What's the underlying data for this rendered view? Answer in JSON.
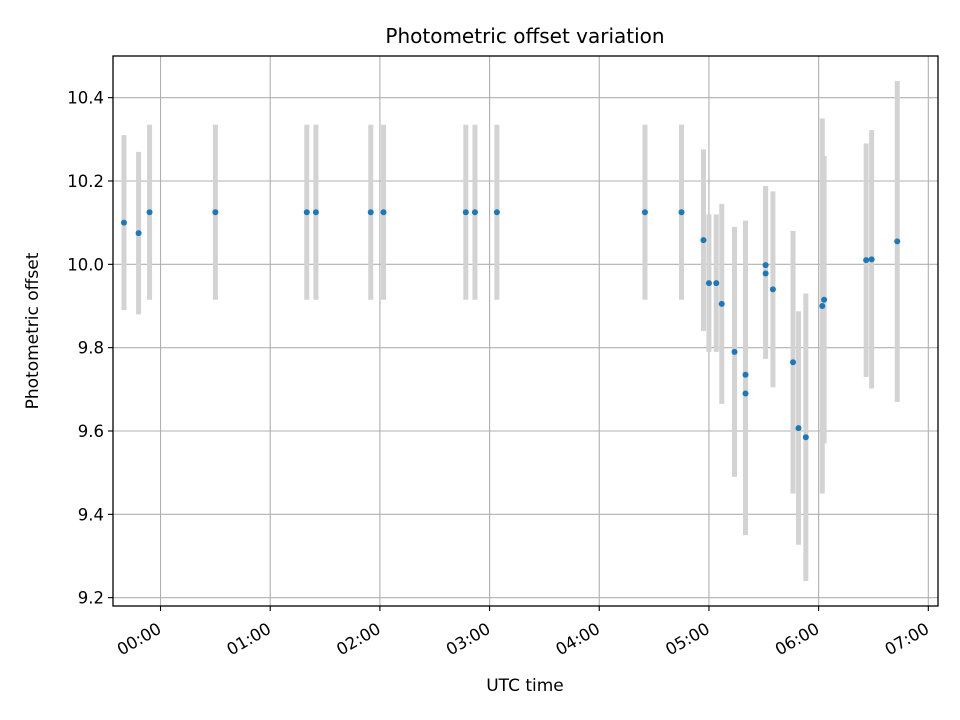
{
  "chart_data": {
    "type": "scatter",
    "title": "Photometric offset variation",
    "xlabel": "UTC time",
    "ylabel": "Photometric offset",
    "xlim": [
      "-00:20",
      "07:05"
    ],
    "ylim": [
      9.18,
      10.5
    ],
    "x_ticks": [
      "00:00",
      "01:00",
      "02:00",
      "03:00",
      "04:00",
      "05:00",
      "06:00",
      "07:00"
    ],
    "y_ticks": [
      "9.2",
      "9.4",
      "9.6",
      "9.8",
      "10.0",
      "10.2",
      "10.4"
    ],
    "grid": true,
    "legend": "none",
    "point_color": "#1f77b4",
    "errorbar_color": "#d3d3d3",
    "points": [
      {
        "time": "-00:20",
        "value": 10.1,
        "err": 0.21
      },
      {
        "time": "-00:12",
        "value": 10.075,
        "err": 0.195
      },
      {
        "time": "-00:06",
        "value": 10.125,
        "err": 0.21
      },
      {
        "time": "00:30",
        "value": 10.125,
        "err": 0.21
      },
      {
        "time": "01:20",
        "value": 10.125,
        "err": 0.21
      },
      {
        "time": "01:25",
        "value": 10.125,
        "err": 0.21
      },
      {
        "time": "01:55",
        "value": 10.125,
        "err": 0.21
      },
      {
        "time": "02:02",
        "value": 10.125,
        "err": 0.21
      },
      {
        "time": "02:47",
        "value": 10.125,
        "err": 0.21
      },
      {
        "time": "02:52",
        "value": 10.125,
        "err": 0.21
      },
      {
        "time": "03:04",
        "value": 10.125,
        "err": 0.21
      },
      {
        "time": "04:25",
        "value": 10.125,
        "err": 0.21
      },
      {
        "time": "04:45",
        "value": 10.125,
        "err": 0.21
      },
      {
        "time": "04:57",
        "value": 10.058,
        "err": 0.218
      },
      {
        "time": "05:00",
        "value": 9.955,
        "err": 0.165
      },
      {
        "time": "05:04",
        "value": 9.955,
        "err": 0.165
      },
      {
        "time": "05:07",
        "value": 9.905,
        "err": 0.24
      },
      {
        "time": "05:14",
        "value": 9.79,
        "err": 0.3
      },
      {
        "time": "05:20",
        "value": 9.735,
        "err": 0.37
      },
      {
        "time": "05:20",
        "value": 9.69,
        "err": 0.34
      },
      {
        "time": "05:31",
        "value": 9.998,
        "err": 0.19
      },
      {
        "time": "05:31",
        "value": 9.978,
        "err": 0.205
      },
      {
        "time": "05:35",
        "value": 9.94,
        "err": 0.235
      },
      {
        "time": "05:46",
        "value": 9.765,
        "err": 0.315
      },
      {
        "time": "05:49",
        "value": 9.607,
        "err": 0.28
      },
      {
        "time": "05:53",
        "value": 9.585,
        "err": 0.345
      },
      {
        "time": "06:02",
        "value": 9.9,
        "err": 0.45
      },
      {
        "time": "06:03",
        "value": 9.915,
        "err": 0.345
      },
      {
        "time": "06:26",
        "value": 10.01,
        "err": 0.28
      },
      {
        "time": "06:29",
        "value": 10.012,
        "err": 0.31
      },
      {
        "time": "06:43",
        "value": 10.055,
        "err": 0.385
      }
    ]
  }
}
